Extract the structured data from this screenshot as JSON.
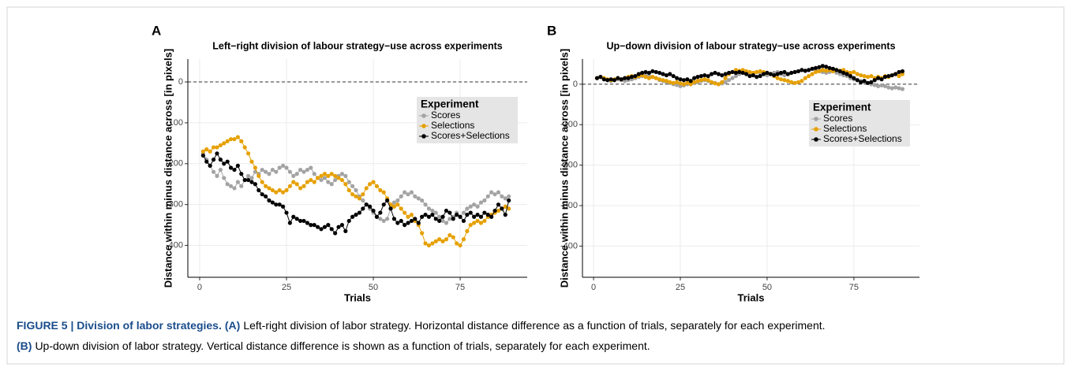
{
  "chart_data": [
    {
      "type": "line",
      "panel": "A",
      "title": "Left−right division of labour strategy−use across experiments",
      "x_label": "Trials",
      "y_label": "Distance within minus distance across [in pixels]",
      "xlim": [
        -3.4,
        94.3
      ],
      "xticks": [
        0,
        25,
        50,
        75
      ],
      "ylim": [
        -478,
        56
      ],
      "yticks": [
        0,
        -100,
        -200,
        -300,
        -400
      ],
      "hline": 0,
      "grid": true,
      "legend_title": "Experiment",
      "legend_position": "right",
      "x": [
        1,
        2,
        3,
        4,
        5,
        6,
        7,
        8,
        9,
        10,
        11,
        12,
        13,
        14,
        15,
        16,
        17,
        18,
        19,
        20,
        21,
        22,
        23,
        24,
        25,
        26,
        27,
        28,
        29,
        30,
        31,
        32,
        33,
        34,
        35,
        36,
        37,
        38,
        39,
        40,
        41,
        42,
        43,
        44,
        45,
        46,
        47,
        48,
        49,
        50,
        51,
        52,
        53,
        54,
        55,
        56,
        57,
        58,
        59,
        60,
        61,
        62,
        63,
        64,
        65,
        66,
        67,
        68,
        69,
        70,
        71,
        72,
        73,
        74,
        75,
        76,
        77,
        78,
        79,
        80,
        81,
        82,
        83,
        84,
        85,
        86,
        87,
        88,
        89
      ],
      "series": [
        {
          "name": "Scores",
          "color": "#a3a3a3",
          "values": [
            -175,
            -190,
            -205,
            -220,
            -230,
            -215,
            -235,
            -250,
            -255,
            -260,
            -245,
            -255,
            -240,
            -230,
            -235,
            -220,
            -225,
            -215,
            -220,
            -225,
            -215,
            -220,
            -210,
            -205,
            -210,
            -220,
            -230,
            -225,
            -215,
            -220,
            -215,
            -210,
            -225,
            -235,
            -240,
            -235,
            -245,
            -250,
            -240,
            -230,
            -225,
            -230,
            -245,
            -255,
            -265,
            -280,
            -290,
            -300,
            -310,
            -320,
            -330,
            -335,
            -340,
            -335,
            -310,
            -295,
            -290,
            -280,
            -270,
            -275,
            -270,
            -280,
            -285,
            -290,
            -300,
            -310,
            -315,
            -320,
            -330,
            -340,
            -345,
            -335,
            -330,
            -320,
            -330,
            -320,
            -310,
            -305,
            -300,
            -305,
            -295,
            -290,
            -280,
            -270,
            -275,
            -270,
            -280,
            -285,
            -280
          ]
        },
        {
          "name": "Selections",
          "color": "#e6a000",
          "values": [
            -170,
            -165,
            -170,
            -160,
            -160,
            -155,
            -150,
            -145,
            -140,
            -140,
            -135,
            -145,
            -160,
            -175,
            -195,
            -210,
            -230,
            -245,
            -255,
            -260,
            -265,
            -270,
            -265,
            -270,
            -265,
            -255,
            -245,
            -250,
            -260,
            -255,
            -245,
            -240,
            -245,
            -235,
            -230,
            -225,
            -230,
            -225,
            -230,
            -235,
            -240,
            -250,
            -265,
            -275,
            -280,
            -285,
            -275,
            -260,
            -250,
            -245,
            -255,
            -265,
            -270,
            -285,
            -300,
            -305,
            -300,
            -310,
            -320,
            -330,
            -325,
            -340,
            -350,
            -370,
            -395,
            -400,
            -395,
            -390,
            -385,
            -390,
            -385,
            -375,
            -380,
            -395,
            -400,
            -385,
            -365,
            -350,
            -345,
            -340,
            -345,
            -340,
            -330,
            -325,
            -320,
            -315,
            -310,
            -305,
            -310
          ]
        },
        {
          "name": "Scores+Selections",
          "color": "#000000",
          "values": [
            -180,
            -195,
            -205,
            -190,
            -175,
            -190,
            -200,
            -195,
            -210,
            -215,
            -205,
            -225,
            -240,
            -240,
            -245,
            -250,
            -265,
            -275,
            -280,
            -290,
            -295,
            -300,
            -300,
            -305,
            -320,
            -345,
            -330,
            -335,
            -340,
            -340,
            -345,
            -350,
            -350,
            -355,
            -360,
            -355,
            -350,
            -360,
            -370,
            -355,
            -350,
            -365,
            -340,
            -330,
            -325,
            -320,
            -310,
            -300,
            -305,
            -315,
            -330,
            -320,
            -300,
            -290,
            -310,
            -335,
            -345,
            -340,
            -350,
            -345,
            -340,
            -335,
            -345,
            -330,
            -325,
            -330,
            -325,
            -335,
            -340,
            -330,
            -315,
            -320,
            -335,
            -325,
            -330,
            -340,
            -325,
            -320,
            -330,
            -325,
            -330,
            -320,
            -325,
            -330,
            -315,
            -300,
            -310,
            -325,
            -290
          ]
        }
      ]
    },
    {
      "type": "line",
      "panel": "B",
      "title": "Up−down division of labour strategy−use across experiments",
      "x_label": "Trials",
      "y_label": "Distance within minus distance across [in pixels]",
      "xlim": [
        -3.2,
        93.9
      ],
      "xticks": [
        0,
        25,
        50,
        75
      ],
      "ylim": [
        -477,
        62
      ],
      "yticks": [
        0,
        -100,
        -200,
        -300,
        -400
      ],
      "hline": 0,
      "grid": true,
      "legend_title": "Experiment",
      "legend_position": "right",
      "x": [
        1,
        2,
        3,
        4,
        5,
        6,
        7,
        8,
        9,
        10,
        11,
        12,
        13,
        14,
        15,
        16,
        17,
        18,
        19,
        20,
        21,
        22,
        23,
        24,
        25,
        26,
        27,
        28,
        29,
        30,
        31,
        32,
        33,
        34,
        35,
        36,
        37,
        38,
        39,
        40,
        41,
        42,
        43,
        44,
        45,
        46,
        47,
        48,
        49,
        50,
        51,
        52,
        53,
        54,
        55,
        56,
        57,
        58,
        59,
        60,
        61,
        62,
        63,
        64,
        65,
        66,
        67,
        68,
        69,
        70,
        71,
        72,
        73,
        74,
        75,
        76,
        77,
        78,
        79,
        80,
        81,
        82,
        83,
        84,
        85,
        86,
        87,
        88,
        89
      ],
      "series": [
        {
          "name": "Scores",
          "color": "#a3a3a3",
          "values": [
            15,
            18,
            12,
            10,
            8,
            10,
            12,
            10,
            8,
            10,
            12,
            15,
            18,
            20,
            22,
            20,
            18,
            15,
            10,
            8,
            5,
            3,
            0,
            -2,
            -5,
            -3,
            0,
            5,
            3,
            5,
            8,
            10,
            8,
            5,
            3,
            0,
            2,
            5,
            10,
            15,
            20,
            25,
            28,
            30,
            28,
            25,
            30,
            28,
            25,
            22,
            25,
            28,
            30,
            25,
            22,
            25,
            28,
            30,
            32,
            35,
            33,
            35,
            38,
            35,
            32,
            30,
            28,
            30,
            32,
            28,
            25,
            22,
            20,
            15,
            12,
            10,
            8,
            5,
            3,
            0,
            -2,
            -5,
            -3,
            -5,
            -8,
            -10,
            -8,
            -10,
            -12
          ]
        },
        {
          "name": "Selections",
          "color": "#e6a000",
          "values": [
            15,
            18,
            15,
            12,
            10,
            12,
            15,
            12,
            15,
            18,
            20,
            18,
            20,
            22,
            18,
            15,
            18,
            15,
            12,
            10,
            8,
            5,
            3,
            5,
            2,
            0,
            3,
            0,
            5,
            8,
            10,
            12,
            10,
            5,
            2,
            0,
            5,
            15,
            25,
            30,
            35,
            33,
            35,
            32,
            30,
            28,
            30,
            32,
            30,
            28,
            25,
            20,
            15,
            12,
            10,
            8,
            5,
            3,
            5,
            8,
            15,
            20,
            25,
            30,
            32,
            35,
            33,
            35,
            32,
            35,
            33,
            35,
            30,
            28,
            30,
            25,
            22,
            20,
            18,
            20,
            15,
            18,
            15,
            20,
            18,
            22,
            25,
            20,
            25
          ]
        },
        {
          "name": "Scores+Selections",
          "color": "#000000",
          "values": [
            15,
            18,
            12,
            10,
            12,
            10,
            15,
            12,
            15,
            15,
            18,
            20,
            25,
            28,
            30,
            28,
            32,
            30,
            28,
            25,
            22,
            25,
            20,
            15,
            12,
            10,
            12,
            8,
            15,
            18,
            20,
            22,
            20,
            25,
            28,
            25,
            22,
            25,
            28,
            30,
            28,
            30,
            28,
            25,
            20,
            22,
            18,
            20,
            25,
            28,
            25,
            22,
            25,
            28,
            30,
            25,
            28,
            30,
            32,
            35,
            33,
            35,
            38,
            40,
            42,
            45,
            43,
            40,
            38,
            35,
            32,
            28,
            25,
            20,
            15,
            10,
            5,
            8,
            3,
            5,
            10,
            15,
            12,
            18,
            20,
            22,
            25,
            30,
            32
          ]
        }
      ]
    }
  ],
  "caption": {
    "label": "FIGURE 5 | Division of labor strategies.",
    "parts": [
      {
        "tag": "(A)",
        "text": "Left-right division of labor strategy. Horizontal distance difference as a function of trials, separately for each experiment."
      },
      {
        "tag": "(B)",
        "text": "Up-down division of labor strategy. Vertical distance difference is shown as a function of trials, separately for each experiment."
      }
    ]
  }
}
